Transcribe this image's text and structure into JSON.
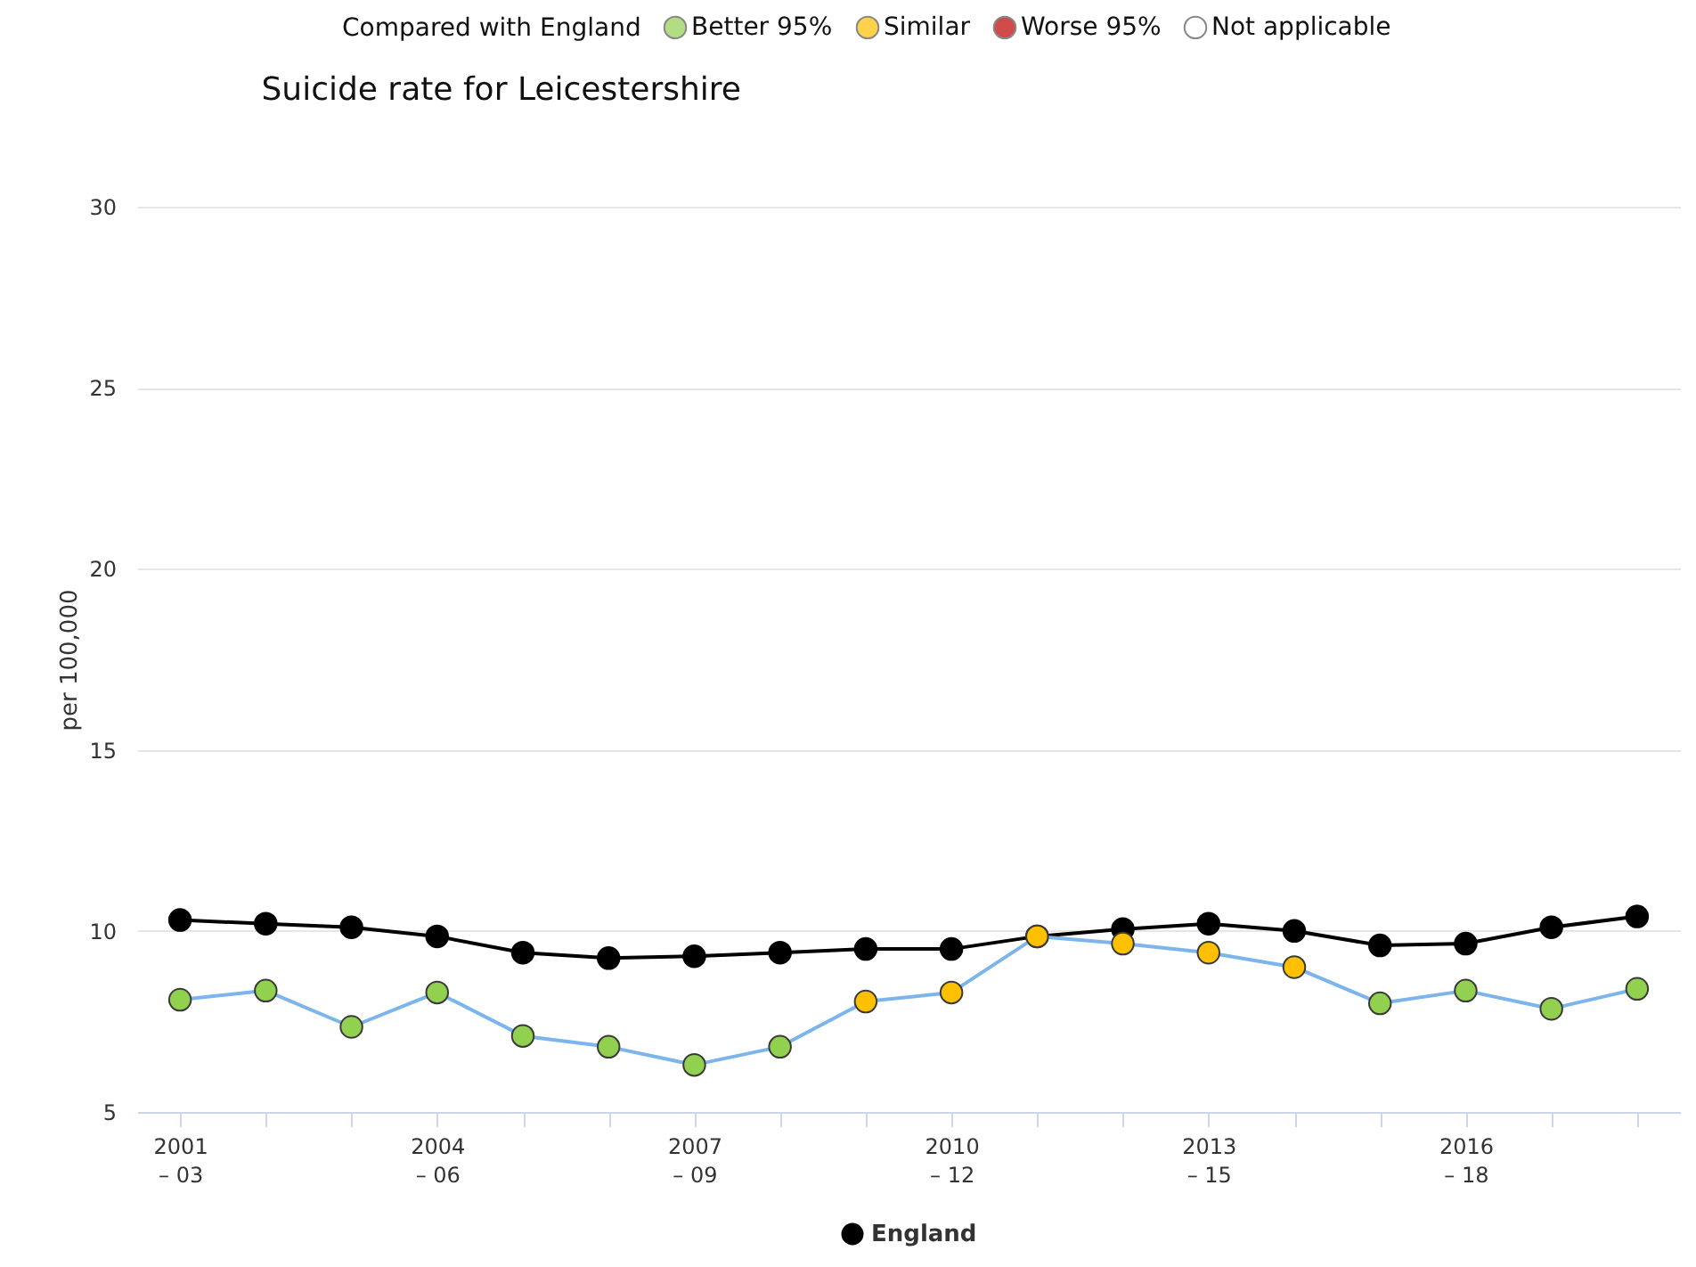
{
  "chart_data": {
    "type": "line",
    "title": "Suicide rate for Leicestershire",
    "ylabel": "per 100,000",
    "legend_title": "Compared with England",
    "categories": [
      "2001\n– 03",
      null,
      null,
      "2004\n– 06",
      null,
      null,
      "2007\n– 09",
      null,
      null,
      "2010\n– 12",
      null,
      null,
      "2013\n– 15",
      null,
      null,
      "2016\n– 18",
      null,
      null
    ],
    "series": [
      {
        "color": "#7cb5ec",
        "values": [
          8.1,
          8.35,
          7.35,
          8.3,
          7.1,
          6.8,
          6.3,
          6.8,
          8.05,
          8.3,
          9.85,
          9.65,
          9.4,
          9.0,
          8.0,
          8.35,
          7.85,
          8.4
        ],
        "colors": [
          "#92d050",
          "#92d050",
          "#92d050",
          "#92d050",
          "#92d050",
          "#92d050",
          "#92d050",
          "#92d050",
          "#ffc000",
          "#ffc000",
          "#ffc000",
          "#ffc000",
          "#ffc000",
          "#ffc000",
          "#92d050",
          "#92d050",
          "#92d050",
          "#92d050"
        ]
      },
      {
        "name": "England",
        "color": "#000000",
        "values": [
          10.3,
          10.2,
          10.1,
          9.85,
          9.4,
          9.25,
          9.3,
          9.4,
          9.5,
          9.5,
          9.85,
          10.05,
          10.2,
          10.0,
          9.6,
          9.65,
          10.1,
          10.4
        ]
      },
      {
        "name": "Better 95%",
        "color": "#92d050",
        "values": [
          null,
          null,
          null,
          null,
          null,
          null,
          null,
          null,
          null,
          null,
          null,
          null,
          null,
          null,
          null,
          null,
          null,
          null
        ]
      },
      {
        "name": "Similar",
        "color": "#ffc000",
        "values": [
          null,
          null,
          null,
          null,
          null,
          null,
          null,
          null,
          null,
          null,
          null,
          null,
          null,
          null,
          null,
          null,
          null,
          null
        ]
      },
      {
        "name": "Worse 95%",
        "color": "#c00000",
        "values": [
          null,
          null,
          null,
          null,
          null,
          null,
          null,
          null,
          null,
          null,
          null,
          null,
          null,
          null,
          null,
          null,
          null,
          null
        ]
      },
      {
        "name": "Not applicable",
        "color": "#ffffff",
        "values": [
          null,
          null,
          null,
          null,
          null,
          null,
          null,
          null,
          null,
          null,
          null,
          null,
          null,
          null,
          null,
          null,
          null,
          null
        ]
      }
    ],
    "ylim": [
      5,
      30
    ],
    "yticks": [
      5,
      10,
      15,
      20,
      25,
      30
    ],
    "grid": "y",
    "legend": "top",
    "marker": "circle"
  }
}
